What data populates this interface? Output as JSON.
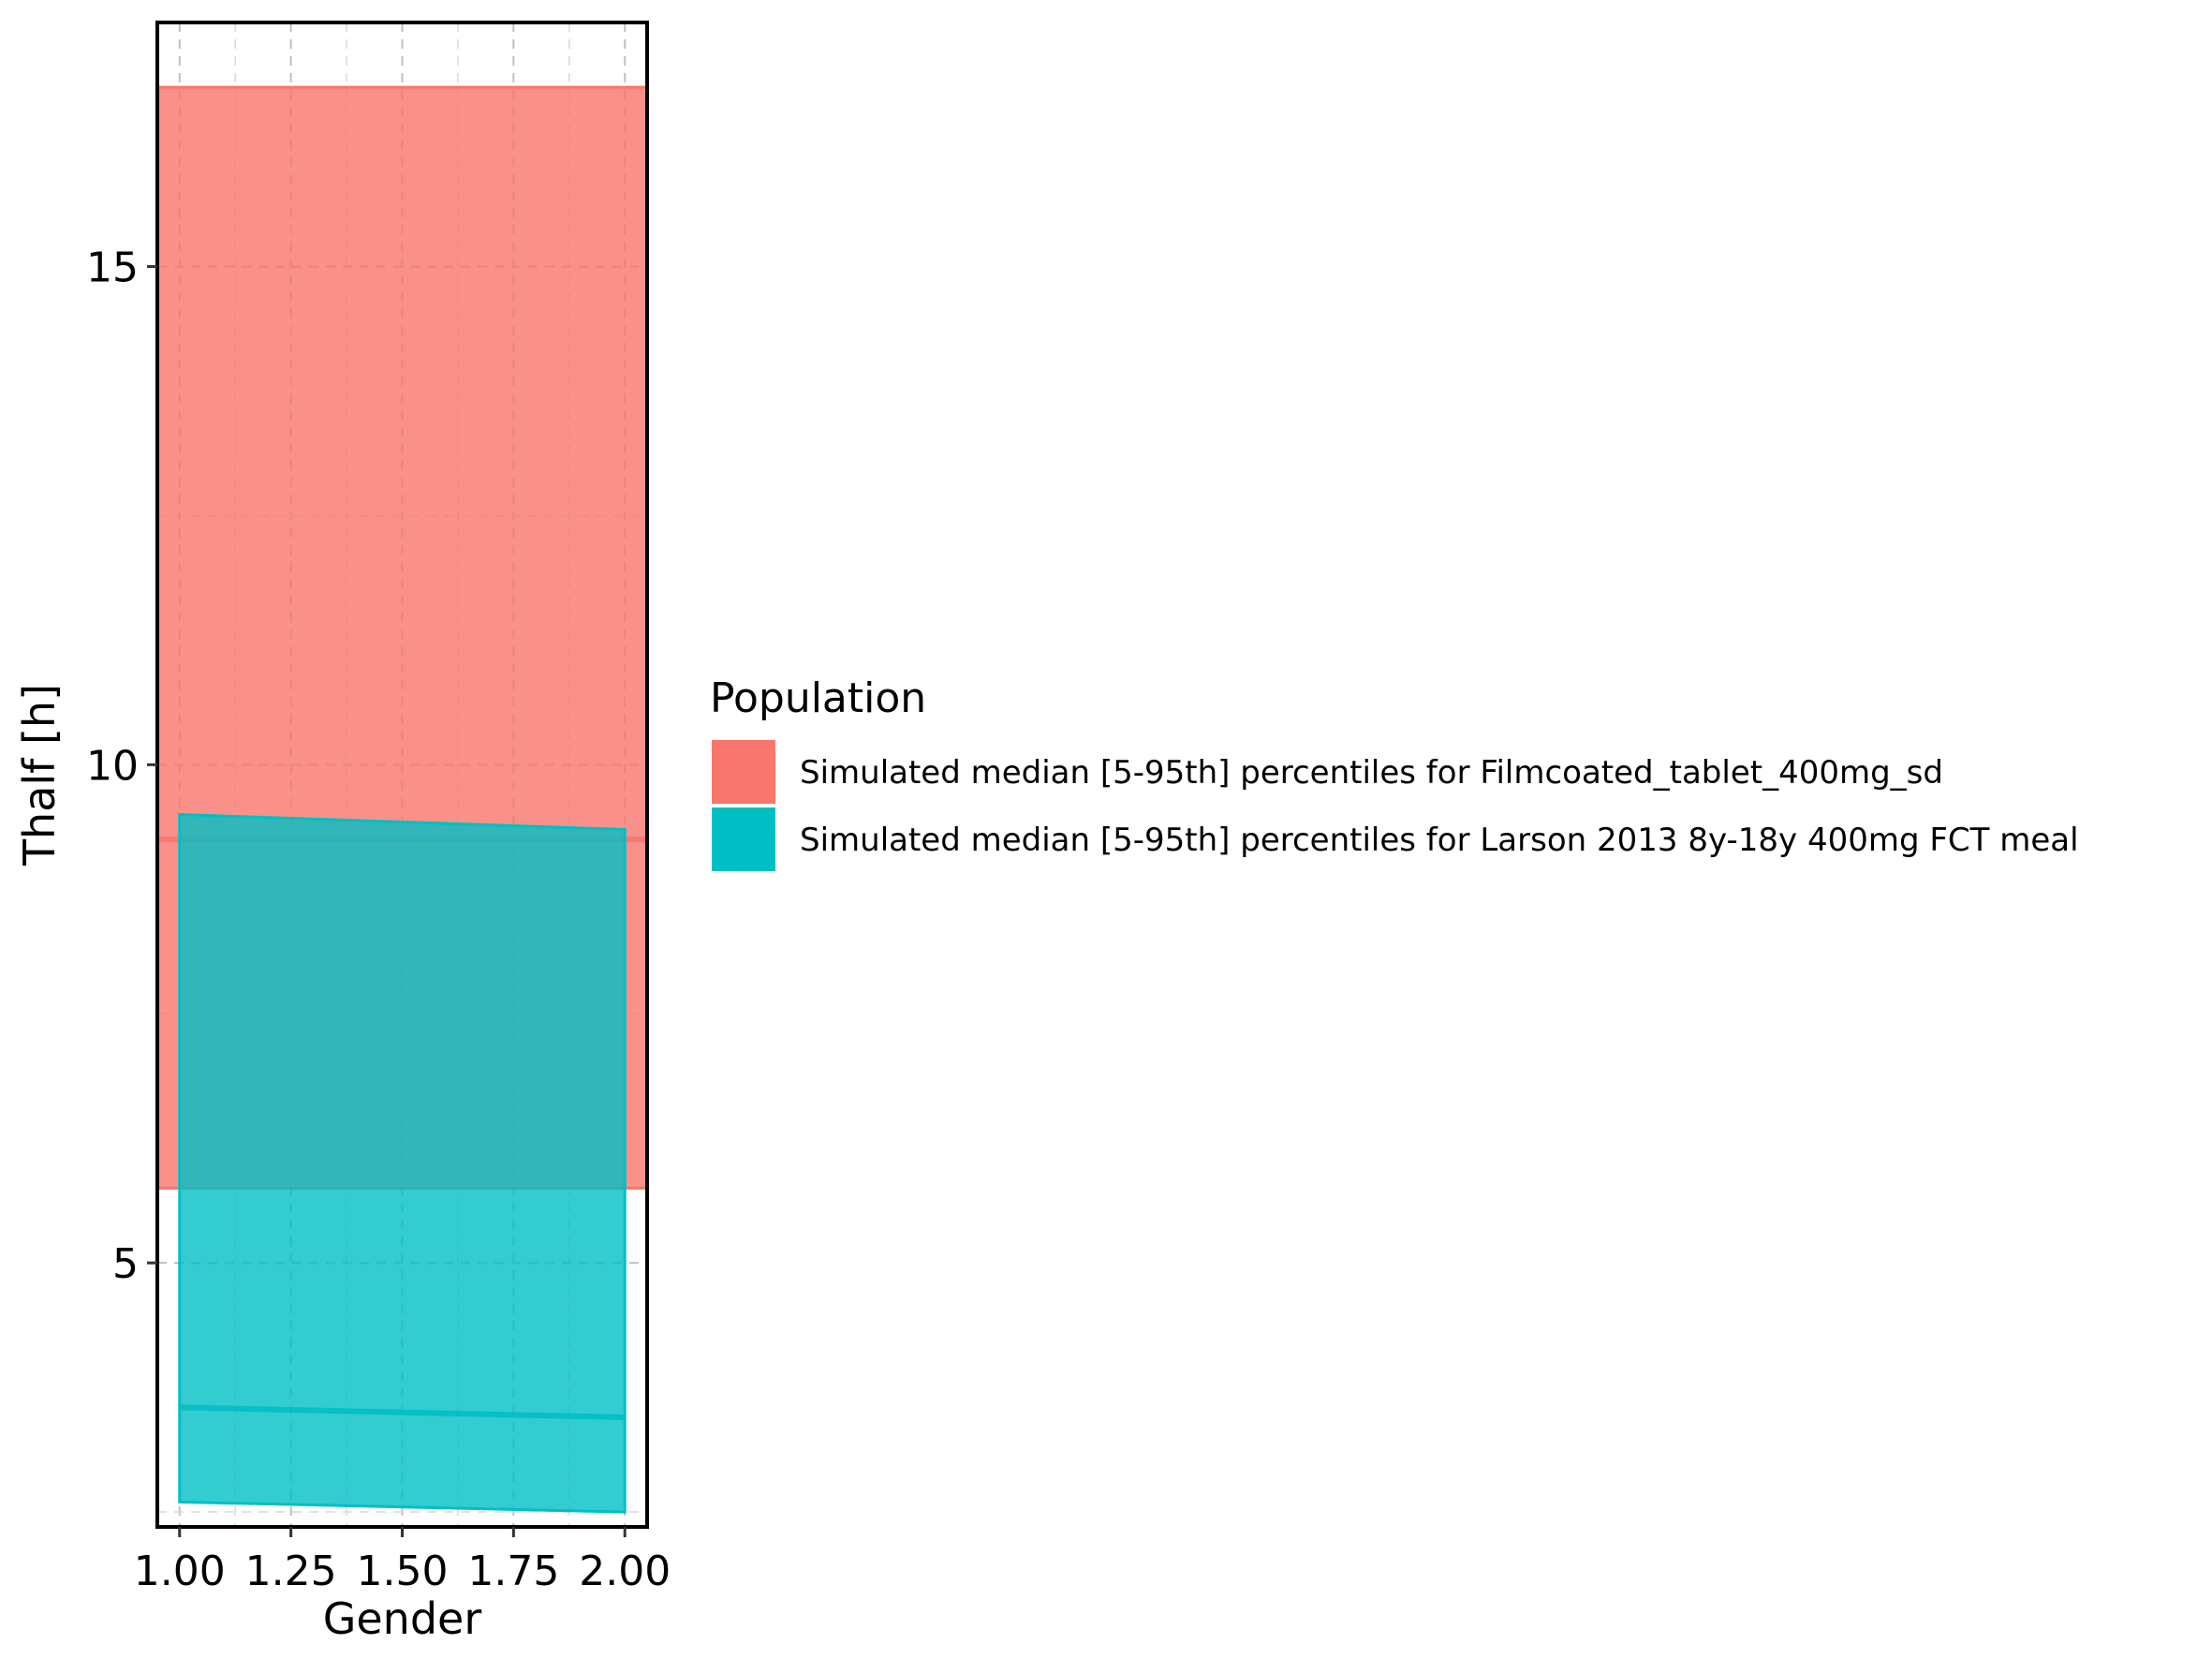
{
  "chart_data": {
    "type": "area",
    "title": "",
    "xlabel": "Gender",
    "ylabel": "Thalf [h]",
    "xlim": [
      0.95,
      2.05
    ],
    "ylim": [
      2.35,
      17.45
    ],
    "xticks": [
      1.0,
      1.25,
      1.5,
      1.75,
      2.0
    ],
    "xtick_labels": [
      "1.00",
      "1.25",
      "1.50",
      "1.75",
      "2.00"
    ],
    "yticks": [
      5,
      10,
      15
    ],
    "ytick_labels": [
      "5",
      "10",
      "15"
    ],
    "grid": true,
    "legend": {
      "title": "Population",
      "placement": "right"
    },
    "series": [
      {
        "name": "Simulated median [5-95th] percentiles for Filmcoated_tablet_400mg_sd",
        "color": "#F8766D",
        "x": [
          0.95,
          2.05
        ],
        "lower": [
          5.75,
          5.75
        ],
        "median": [
          9.25,
          9.25
        ],
        "upper": [
          16.8,
          16.8
        ]
      },
      {
        "name": "Simulated median [5-95th] percentiles for Larson 2013 8y-18y 400mg FCT meal",
        "color": "#00BFC4",
        "x": [
          1.0,
          2.0
        ],
        "lower": [
          2.6,
          2.5
        ],
        "median": [
          3.55,
          3.45
        ],
        "upper": [
          9.5,
          9.35
        ]
      }
    ]
  }
}
